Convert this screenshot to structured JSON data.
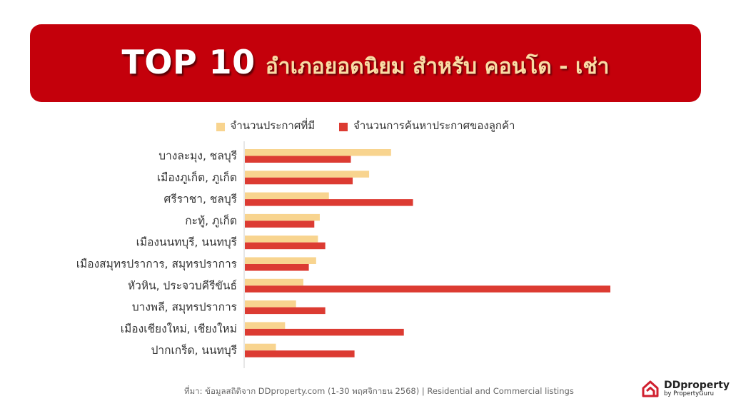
{
  "title": {
    "main": "TOP 10",
    "sub": "อำเภอยอดนิยม สำหรับ คอนโด - เช่า"
  },
  "colors": {
    "banner": "#c4000b",
    "series_listings": "#f8d48f",
    "series_searches": "#dc3b32"
  },
  "chart_data": {
    "type": "bar",
    "orientation": "horizontal",
    "categories": [
      "บางละมุง, ชลบุรี",
      "เมืองภูเก็ต, ภูเก็ต",
      "ศรีราชา, ชลบุรี",
      "กะทู้, ภูเก็ต",
      "เมืองนนทบุรี, นนทบุรี",
      "เมืองสมุทรปราการ, สมุทรปราการ",
      "หัวหิน, ประจวบคีรีขันธ์",
      "บางพลี, สมุทรปราการ",
      "เมืองเชียงใหม่, เชียงใหม่",
      "ปากเกร็ด, นนทบุรี"
    ],
    "series": [
      {
        "name": "จำนวนประกาศที่มี",
        "values": [
          40,
          34,
          23,
          20.5,
          20,
          19.5,
          16,
          14,
          11,
          8.5
        ]
      },
      {
        "name": "จำนวนการค้นหาประกาศของลูกค้า",
        "values": [
          29,
          29.5,
          46,
          19,
          22,
          17.5,
          100,
          22,
          43.5,
          30
        ]
      }
    ],
    "xlim": [
      0,
      100
    ],
    "grid": false,
    "legend_position": "top"
  },
  "source": "ที่มา: ข้อมูลสถิติจาก DDproperty.com (1-30 พฤศจิกายน 2568) | Residential and Commercial listings",
  "logo": {
    "name": "DDproperty",
    "tagline": "by PropertyGuru",
    "icon": "ddproperty-house-logo-icon"
  }
}
